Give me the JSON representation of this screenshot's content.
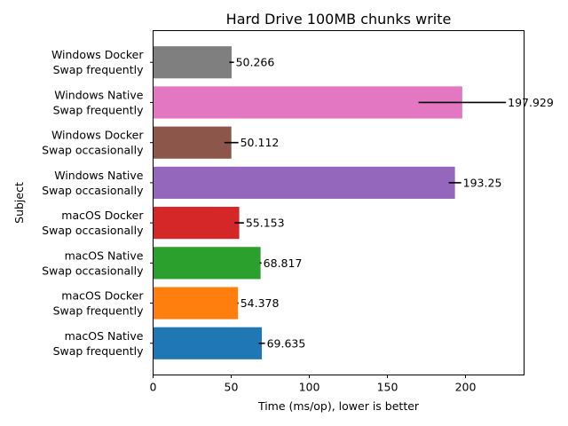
{
  "chart_data": {
    "type": "bar",
    "orientation": "horizontal",
    "title": "Hard Drive 100MB chunks write",
    "xlabel": "Time (ms/op), lower is better",
    "ylabel": "Subject",
    "xlim": [
      0,
      237.5
    ],
    "xticks": [
      0,
      50,
      100,
      150,
      200
    ],
    "grid": false,
    "categories": [
      [
        "macOS Native",
        "Swap frequently"
      ],
      [
        "macOS Docker",
        "Swap frequently"
      ],
      [
        "macOS Native",
        "Swap occasionally"
      ],
      [
        "macOS Docker",
        "Swap occasionally"
      ],
      [
        "Windows Native",
        "Swap occasionally"
      ],
      [
        "Windows Docker",
        "Swap occasionally"
      ],
      [
        "Windows Native",
        "Swap frequently"
      ],
      [
        "Windows Docker",
        "Swap frequently"
      ]
    ],
    "values": [
      69.635,
      54.378,
      68.817,
      55.153,
      193.25,
      50.112,
      197.929,
      50.266
    ],
    "value_labels": [
      "69.635",
      "54.378",
      "68.817",
      "55.153",
      "193.25",
      "50.112",
      "197.929",
      "50.266"
    ],
    "errors": [
      2.0,
      0.3,
      0.6,
      3.0,
      4.0,
      4.5,
      28.0,
      1.5
    ],
    "colors": [
      "#1f77b4",
      "#ff7f0e",
      "#2ca02c",
      "#d62728",
      "#9467bd",
      "#8c564b",
      "#e377c2",
      "#7f7f7f"
    ]
  }
}
